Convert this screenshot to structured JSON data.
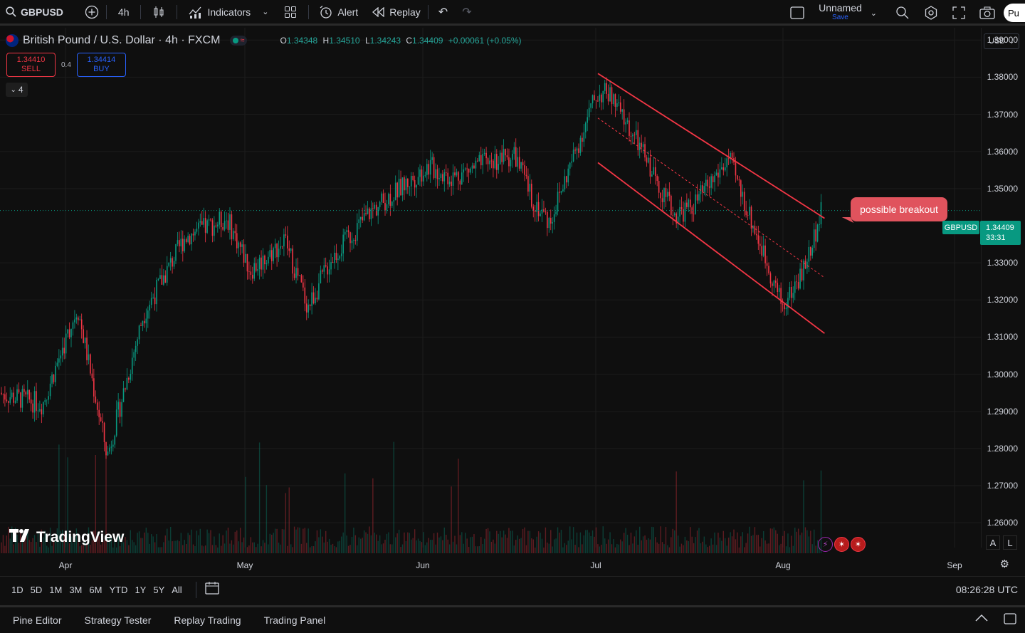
{
  "toolbar": {
    "symbol": "GBPUSD",
    "interval": "4h",
    "indicators": "Indicators",
    "alert": "Alert",
    "replay": "Replay",
    "layout_name": "Unnamed",
    "layout_save": "Save",
    "publish": "Pu"
  },
  "legend": {
    "title": "British Pound / U.S. Dollar · 4h · FXCM",
    "open_key": "O",
    "open": "1.34348",
    "high_key": "H",
    "high": "1.34510",
    "low_key": "L",
    "low": "1.34243",
    "close_key": "C",
    "close": "1.34409",
    "change": "+0.00061 (+0.05%)"
  },
  "trade": {
    "sell_price": "1.34410",
    "sell_label": "SELL",
    "spread": "0.4",
    "buy_price": "1.34414",
    "buy_label": "BUY"
  },
  "indicators_count": "4",
  "currency": "USD",
  "annotation": "possible breakout",
  "last_price": {
    "symbol": "GBPUSD",
    "price": "1.34409",
    "countdown": "33:31"
  },
  "brand": "TradingView",
  "scale_buttons": {
    "auto": "A",
    "log": "L"
  },
  "range_buttons": [
    "1D",
    "5D",
    "1M",
    "3M",
    "6M",
    "YTD",
    "1Y",
    "5Y",
    "All"
  ],
  "clock": "08:26:28 UTC",
  "bottom_tabs": [
    "Pine Editor",
    "Strategy Tester",
    "Replay Trading",
    "Trading Panel"
  ],
  "colors": {
    "up": "#089981",
    "down": "#f23645",
    "channel": "#f23645",
    "background": "#0f0f0f"
  },
  "chart_data": {
    "type": "candlestick",
    "symbol": "GBPUSD",
    "timeframe": "4h",
    "x_ticks": [
      "Apr",
      "May",
      "Jun",
      "Jul",
      "Aug",
      "Sep"
    ],
    "y_ticks": [
      "1.39000",
      "1.38000",
      "1.37000",
      "1.36000",
      "1.35000",
      "1.33000",
      "1.32000",
      "1.31000",
      "1.30000",
      "1.29000",
      "1.28000",
      "1.27000",
      "1.26000"
    ],
    "ylim": [
      1.256,
      1.396
    ],
    "price_path": [
      [
        "Mar 20",
        1.295
      ],
      [
        "Mar 28",
        1.292
      ],
      [
        "Apr 3",
        1.318
      ],
      [
        "Apr 8",
        1.278
      ],
      [
        "Apr 14",
        1.316
      ],
      [
        "Apr 21",
        1.337
      ],
      [
        "Apr 28",
        1.342
      ],
      [
        "May 2",
        1.328
      ],
      [
        "May 8",
        1.336
      ],
      [
        "May 12",
        1.318
      ],
      [
        "May 16",
        1.331
      ],
      [
        "May 23",
        1.344
      ],
      [
        "Jun 2",
        1.356
      ],
      [
        "Jun 6",
        1.353
      ],
      [
        "Jun 12",
        1.357
      ],
      [
        "Jun 17",
        1.359
      ],
      [
        "Jun 20",
        1.347
      ],
      [
        "Jun 23",
        1.341
      ],
      [
        "Jul 1",
        1.375
      ],
      [
        "Jul 3",
        1.376
      ],
      [
        "Jul 8",
        1.362
      ],
      [
        "Jul 14",
        1.343
      ],
      [
        "Jul 17",
        1.345
      ],
      [
        "Jul 23",
        1.358
      ],
      [
        "Jul 28",
        1.336
      ],
      [
        "Aug 1",
        1.318
      ],
      [
        "Aug 5",
        1.329
      ],
      [
        "Aug 8",
        1.344
      ]
    ],
    "channel": {
      "upper": [
        [
          "Jul 1",
          1.381
        ],
        [
          "Aug 8",
          1.342
        ]
      ],
      "lower": [
        [
          "Jul 1",
          1.357
        ],
        [
          "Aug 8",
          1.311
        ]
      ],
      "mid": [
        [
          "Jul 1",
          1.369
        ],
        [
          "Aug 8",
          1.326
        ]
      ]
    },
    "last": 1.34409
  }
}
